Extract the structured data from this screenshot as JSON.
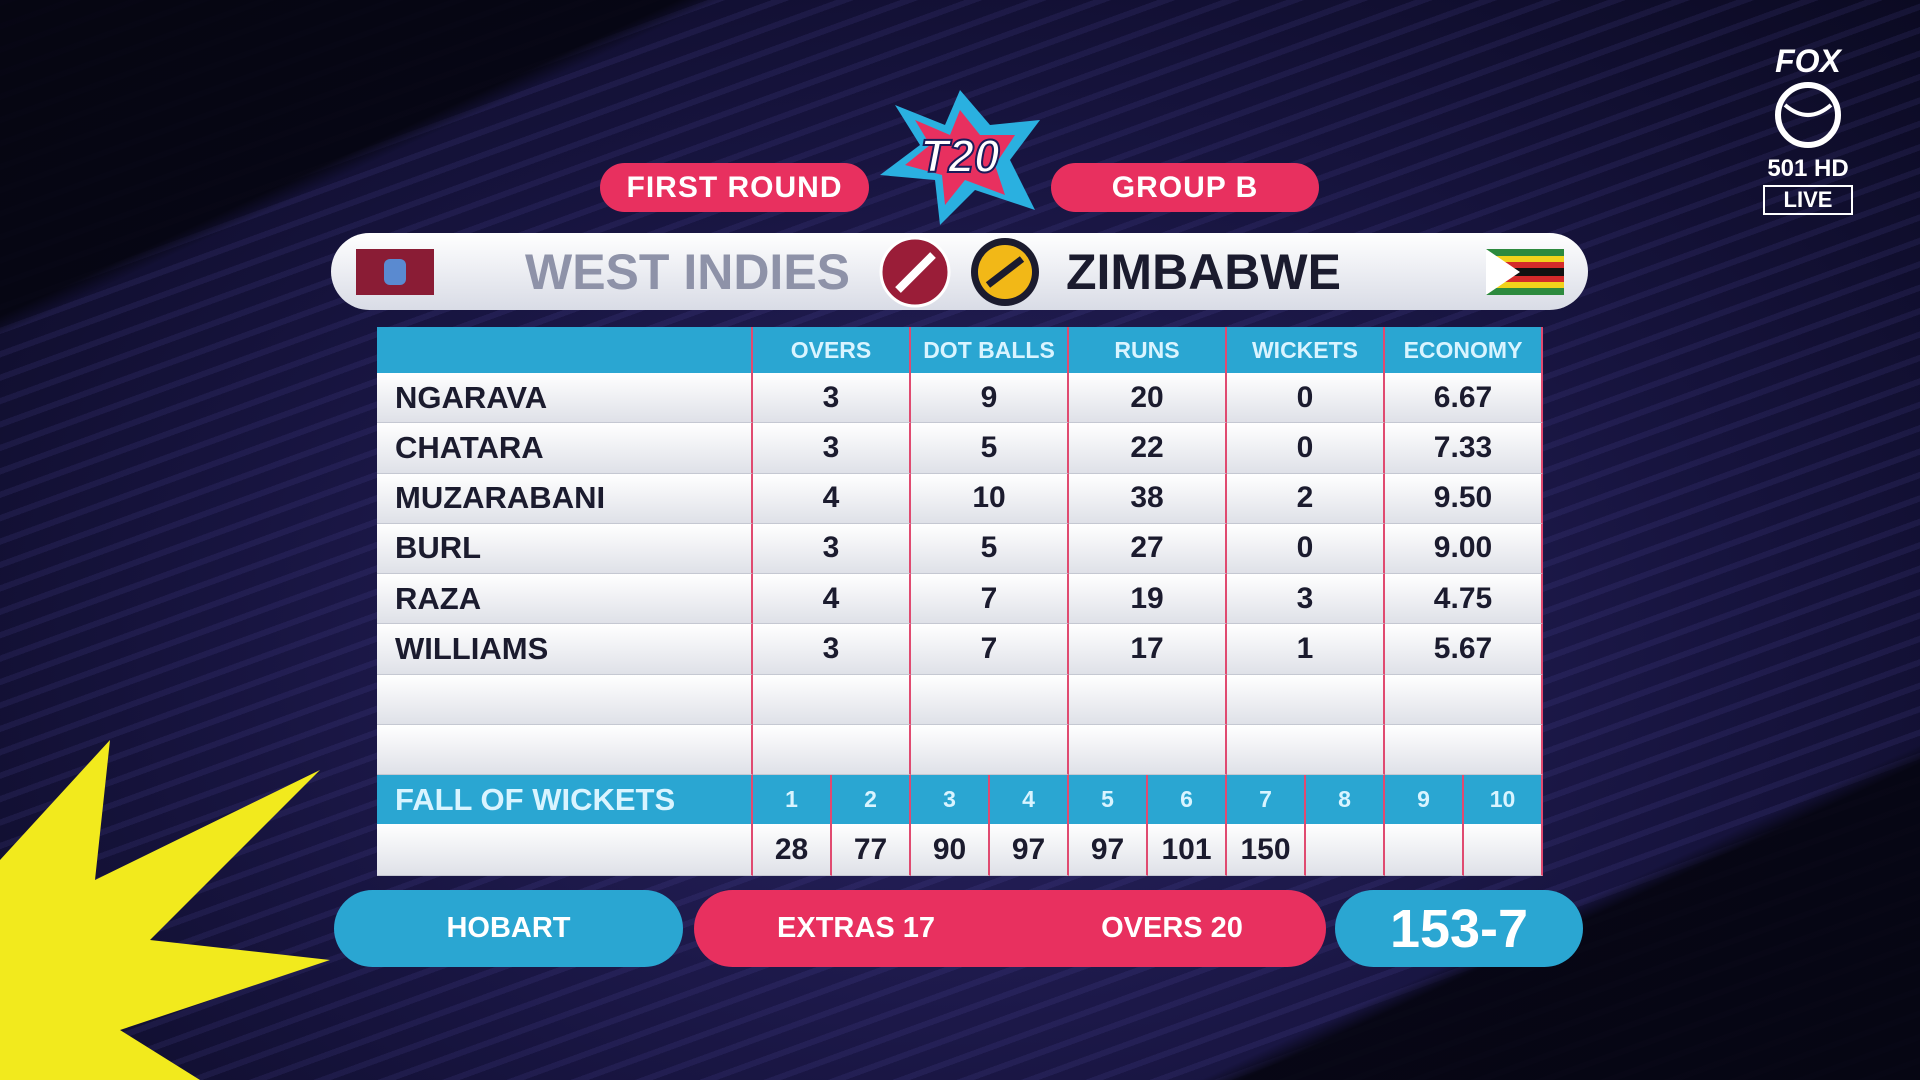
{
  "header": {
    "logo": "T20",
    "round": "FIRST ROUND",
    "group": "GROUP B"
  },
  "broadcaster": {
    "name": "FOX",
    "channel": "501 HD",
    "status": "LIVE"
  },
  "teams": {
    "batting": "WEST INDIES",
    "bowling": "ZIMBABWE"
  },
  "table": {
    "columns": [
      "OVERS",
      "DOT BALLS",
      "RUNS",
      "WICKETS",
      "ECONOMY"
    ],
    "rows": [
      [
        "NGARAVA",
        "3",
        "9",
        "20",
        "0",
        "6.67"
      ],
      [
        "CHATARA",
        "3",
        "5",
        "22",
        "0",
        "7.33"
      ],
      [
        "MUZARABANI",
        "4",
        "10",
        "38",
        "2",
        "9.50"
      ],
      [
        "BURL",
        "3",
        "5",
        "27",
        "0",
        "9.00"
      ],
      [
        "RAZA",
        "4",
        "7",
        "19",
        "3",
        "4.75"
      ],
      [
        "WILLIAMS",
        "3",
        "7",
        "17",
        "1",
        "5.67"
      ]
    ]
  },
  "fall_of_wickets": {
    "label": "FALL OF WICKETS",
    "wickets": [
      "1",
      "2",
      "3",
      "4",
      "5",
      "6",
      "7",
      "8",
      "9",
      "10"
    ],
    "scores": [
      "28",
      "77",
      "90",
      "97",
      "97",
      "101",
      "150"
    ]
  },
  "footer": {
    "venue": "HOBART",
    "extras_label": "EXTRAS",
    "extras": "17",
    "overs_label": "OVERS",
    "overs": "20",
    "score": "153-7"
  }
}
